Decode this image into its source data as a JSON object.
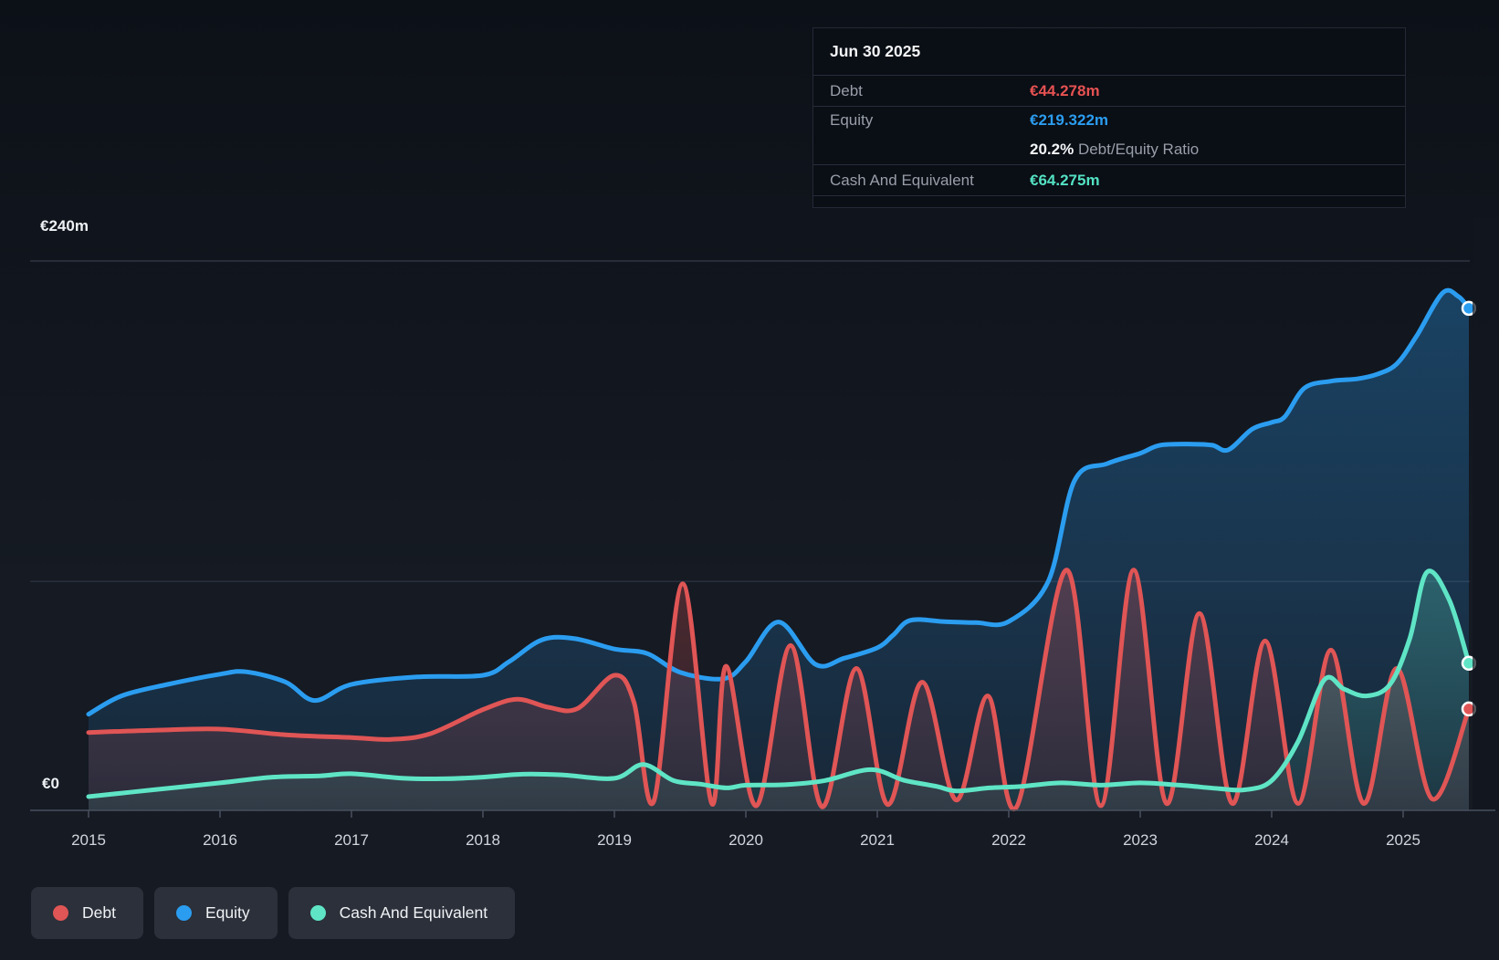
{
  "tooltip": {
    "title": "Jun 30 2025",
    "rows": [
      {
        "label": "Debt",
        "value": "€44.278m"
      },
      {
        "label": "Equity",
        "value": "€219.322m"
      },
      {
        "label": "Cash And Equivalent",
        "value": "€64.275m"
      }
    ],
    "ratio_value": "20.2%",
    "ratio_label": "Debt/Equity Ratio"
  },
  "y_axis": {
    "top_label": "€240m",
    "zero_label": "€0"
  },
  "x_axis": {
    "ticks": [
      "2015",
      "2016",
      "2017",
      "2018",
      "2019",
      "2020",
      "2021",
      "2022",
      "2023",
      "2024",
      "2025"
    ]
  },
  "legend": [
    {
      "id": "debt",
      "label": "Debt",
      "color": "#e05555"
    },
    {
      "id": "equity",
      "label": "Equity",
      "color": "#2b9df0"
    },
    {
      "id": "cash",
      "label": "Cash And Equivalent",
      "color": "#5fe5c6"
    }
  ],
  "colors": {
    "background": "#151a23",
    "gridline_top": "#3d4452",
    "gridline_mid": "#333b49",
    "axis": "#49505e",
    "debt": "#e05555",
    "equity": "#2b9df0",
    "cash": "#5fe5c6"
  },
  "chart_data": {
    "type": "area",
    "title": "Debt, Equity and Cash And Equivalent history (€ millions)",
    "x_range": [
      2015,
      2025.5
    ],
    "ylim": [
      0,
      240
    ],
    "y_unit": "€m",
    "grid_values_m": [
      240,
      100,
      0
    ],
    "end_date": "Jun 30 2025",
    "series": [
      {
        "name": "Equity",
        "color": "#2b9df0",
        "points": [
          [
            2015.0,
            42
          ],
          [
            2015.25,
            50
          ],
          [
            2015.6,
            55
          ],
          [
            2016.0,
            59.5
          ],
          [
            2016.2,
            60.5
          ],
          [
            2016.5,
            56
          ],
          [
            2016.72,
            48
          ],
          [
            2017.0,
            55
          ],
          [
            2017.5,
            58.3
          ],
          [
            2018.0,
            59
          ],
          [
            2018.2,
            65
          ],
          [
            2018.45,
            74.5
          ],
          [
            2018.7,
            75
          ],
          [
            2019.0,
            70.5
          ],
          [
            2019.25,
            68.5
          ],
          [
            2019.5,
            60.3
          ],
          [
            2019.83,
            57.5
          ],
          [
            2020.0,
            65
          ],
          [
            2020.25,
            82.3
          ],
          [
            2020.53,
            63.8
          ],
          [
            2020.75,
            66.5
          ],
          [
            2021.0,
            71
          ],
          [
            2021.12,
            76.5
          ],
          [
            2021.25,
            83
          ],
          [
            2021.5,
            82.5
          ],
          [
            2021.75,
            82
          ],
          [
            2022.0,
            82.5
          ],
          [
            2022.3,
            100
          ],
          [
            2022.5,
            144
          ],
          [
            2022.75,
            151.5
          ],
          [
            2023.0,
            156
          ],
          [
            2023.15,
            159.5
          ],
          [
            2023.4,
            160
          ],
          [
            2023.55,
            159.5
          ],
          [
            2023.67,
            157.5
          ],
          [
            2023.85,
            166.5
          ],
          [
            2024.0,
            169.5
          ],
          [
            2024.1,
            172
          ],
          [
            2024.25,
            184.5
          ],
          [
            2024.45,
            187.5
          ],
          [
            2024.65,
            188.5
          ],
          [
            2024.8,
            190.5
          ],
          [
            2024.95,
            195
          ],
          [
            2025.1,
            207
          ],
          [
            2025.3,
            226
          ],
          [
            2025.42,
            224.5
          ],
          [
            2025.5,
            219.322
          ]
        ]
      },
      {
        "name": "Debt",
        "color": "#e05555",
        "points": [
          [
            2015.0,
            34
          ],
          [
            2015.5,
            35
          ],
          [
            2016.0,
            35.5
          ],
          [
            2016.5,
            33
          ],
          [
            2017.0,
            31.8
          ],
          [
            2017.3,
            31
          ],
          [
            2017.6,
            33.5
          ],
          [
            2018.0,
            44
          ],
          [
            2018.26,
            48.5
          ],
          [
            2018.5,
            45
          ],
          [
            2018.72,
            44.5
          ],
          [
            2019.0,
            59
          ],
          [
            2019.15,
            47
          ],
          [
            2019.3,
            4
          ],
          [
            2019.52,
            99
          ],
          [
            2019.74,
            3
          ],
          [
            2019.85,
            63
          ],
          [
            2020.08,
            2
          ],
          [
            2020.34,
            72
          ],
          [
            2020.58,
            1.5
          ],
          [
            2020.84,
            62
          ],
          [
            2021.08,
            2.5
          ],
          [
            2021.34,
            56
          ],
          [
            2021.6,
            4.5
          ],
          [
            2021.84,
            50
          ],
          [
            2022.06,
            1.5
          ],
          [
            2022.44,
            105
          ],
          [
            2022.7,
            2
          ],
          [
            2022.95,
            105
          ],
          [
            2023.2,
            3
          ],
          [
            2023.45,
            86
          ],
          [
            2023.7,
            3
          ],
          [
            2023.95,
            74
          ],
          [
            2024.2,
            3
          ],
          [
            2024.45,
            70
          ],
          [
            2024.7,
            3
          ],
          [
            2024.95,
            62
          ],
          [
            2025.22,
            5
          ],
          [
            2025.5,
            44.278
          ]
        ]
      },
      {
        "name": "Cash And Equivalent",
        "color": "#5fe5c6",
        "points": [
          [
            2015.0,
            6
          ],
          [
            2015.5,
            9
          ],
          [
            2016.0,
            12
          ],
          [
            2016.4,
            14.5
          ],
          [
            2016.77,
            15.1
          ],
          [
            2017.0,
            16
          ],
          [
            2017.4,
            14
          ],
          [
            2017.7,
            13.8
          ],
          [
            2018.0,
            14.5
          ],
          [
            2018.3,
            15.8
          ],
          [
            2018.6,
            15.5
          ],
          [
            2019.0,
            14
          ],
          [
            2019.22,
            20
          ],
          [
            2019.45,
            13
          ],
          [
            2019.65,
            11.5
          ],
          [
            2019.85,
            9.8
          ],
          [
            2020.0,
            11
          ],
          [
            2020.3,
            11.2
          ],
          [
            2020.6,
            13
          ],
          [
            2020.95,
            17.8
          ],
          [
            2021.2,
            13.2
          ],
          [
            2021.45,
            10.5
          ],
          [
            2021.6,
            8.5
          ],
          [
            2021.85,
            9.8
          ],
          [
            2022.1,
            10.5
          ],
          [
            2022.4,
            12
          ],
          [
            2022.7,
            11
          ],
          [
            2023.0,
            12
          ],
          [
            2023.3,
            11
          ],
          [
            2023.6,
            9.5
          ],
          [
            2023.8,
            9
          ],
          [
            2024.0,
            13
          ],
          [
            2024.2,
            30
          ],
          [
            2024.4,
            57
          ],
          [
            2024.55,
            53
          ],
          [
            2024.72,
            50
          ],
          [
            2024.9,
            55
          ],
          [
            2025.05,
            75
          ],
          [
            2025.18,
            104
          ],
          [
            2025.35,
            92
          ],
          [
            2025.5,
            64.275
          ]
        ]
      }
    ]
  }
}
